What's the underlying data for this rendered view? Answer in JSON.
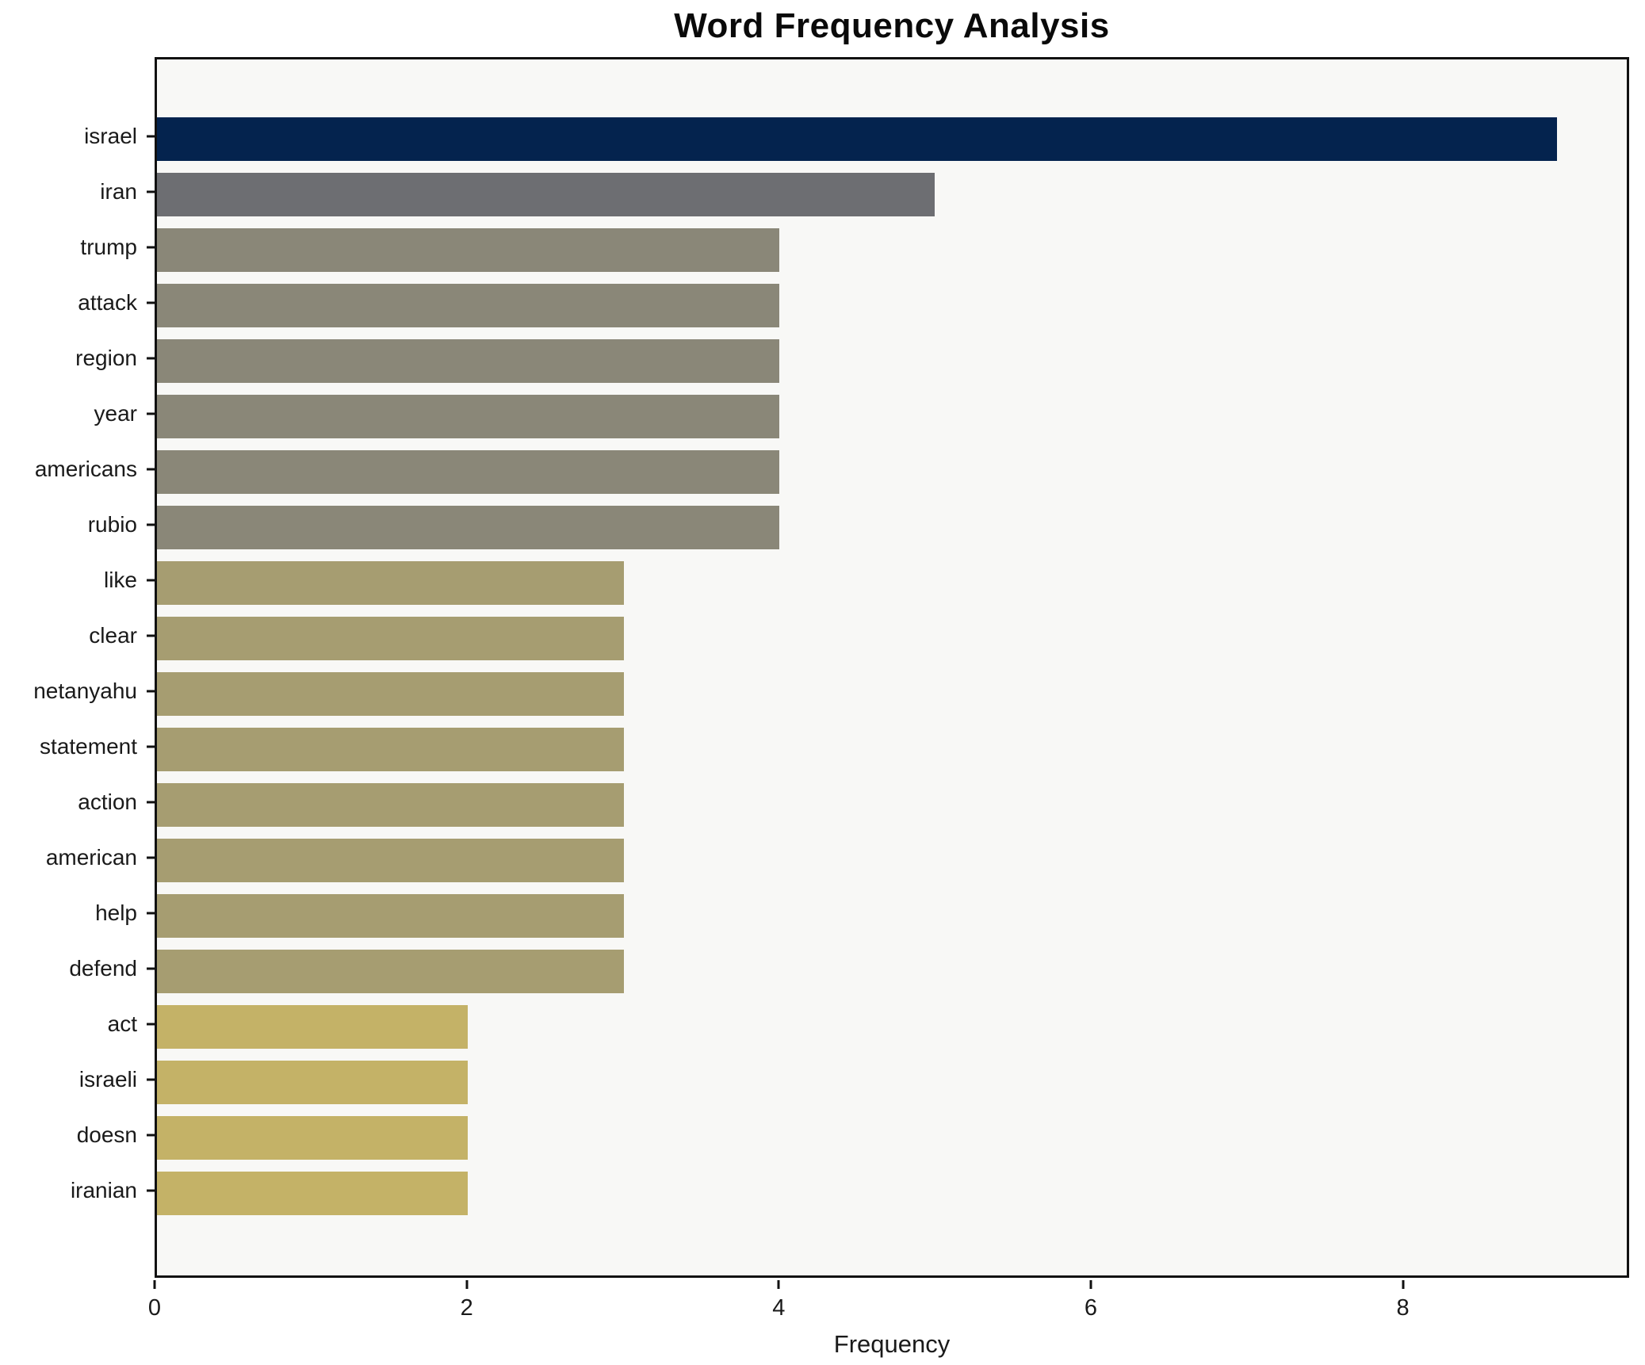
{
  "title": "Word Frequency Analysis",
  "chart_data": {
    "type": "bar",
    "orientation": "horizontal",
    "title": "Word Frequency Analysis",
    "xlabel": "Frequency",
    "ylabel": "",
    "categories": [
      "israel",
      "iran",
      "trump",
      "attack",
      "region",
      "year",
      "americans",
      "rubio",
      "like",
      "clear",
      "netanyahu",
      "statement",
      "action",
      "american",
      "help",
      "defend",
      "act",
      "israeli",
      "doesn",
      "iranian"
    ],
    "values": [
      9,
      5,
      4,
      4,
      4,
      4,
      4,
      4,
      3,
      3,
      3,
      3,
      3,
      3,
      3,
      3,
      2,
      2,
      2,
      2
    ],
    "xlim": [
      0,
      9.45
    ],
    "xticks": [
      0,
      2,
      4,
      6,
      8
    ],
    "grid": false,
    "legend_position": "none",
    "value_colors": {
      "9": "#04234e",
      "5": "#6d6e72",
      "4": "#8a8778",
      "3": "#a69d71",
      "2": "#c4b267"
    }
  },
  "colors": {
    "figure_background": "#ffffff",
    "plot_background": "#f8f8f6",
    "axis": "#111111",
    "text": "#1a1a1a"
  }
}
